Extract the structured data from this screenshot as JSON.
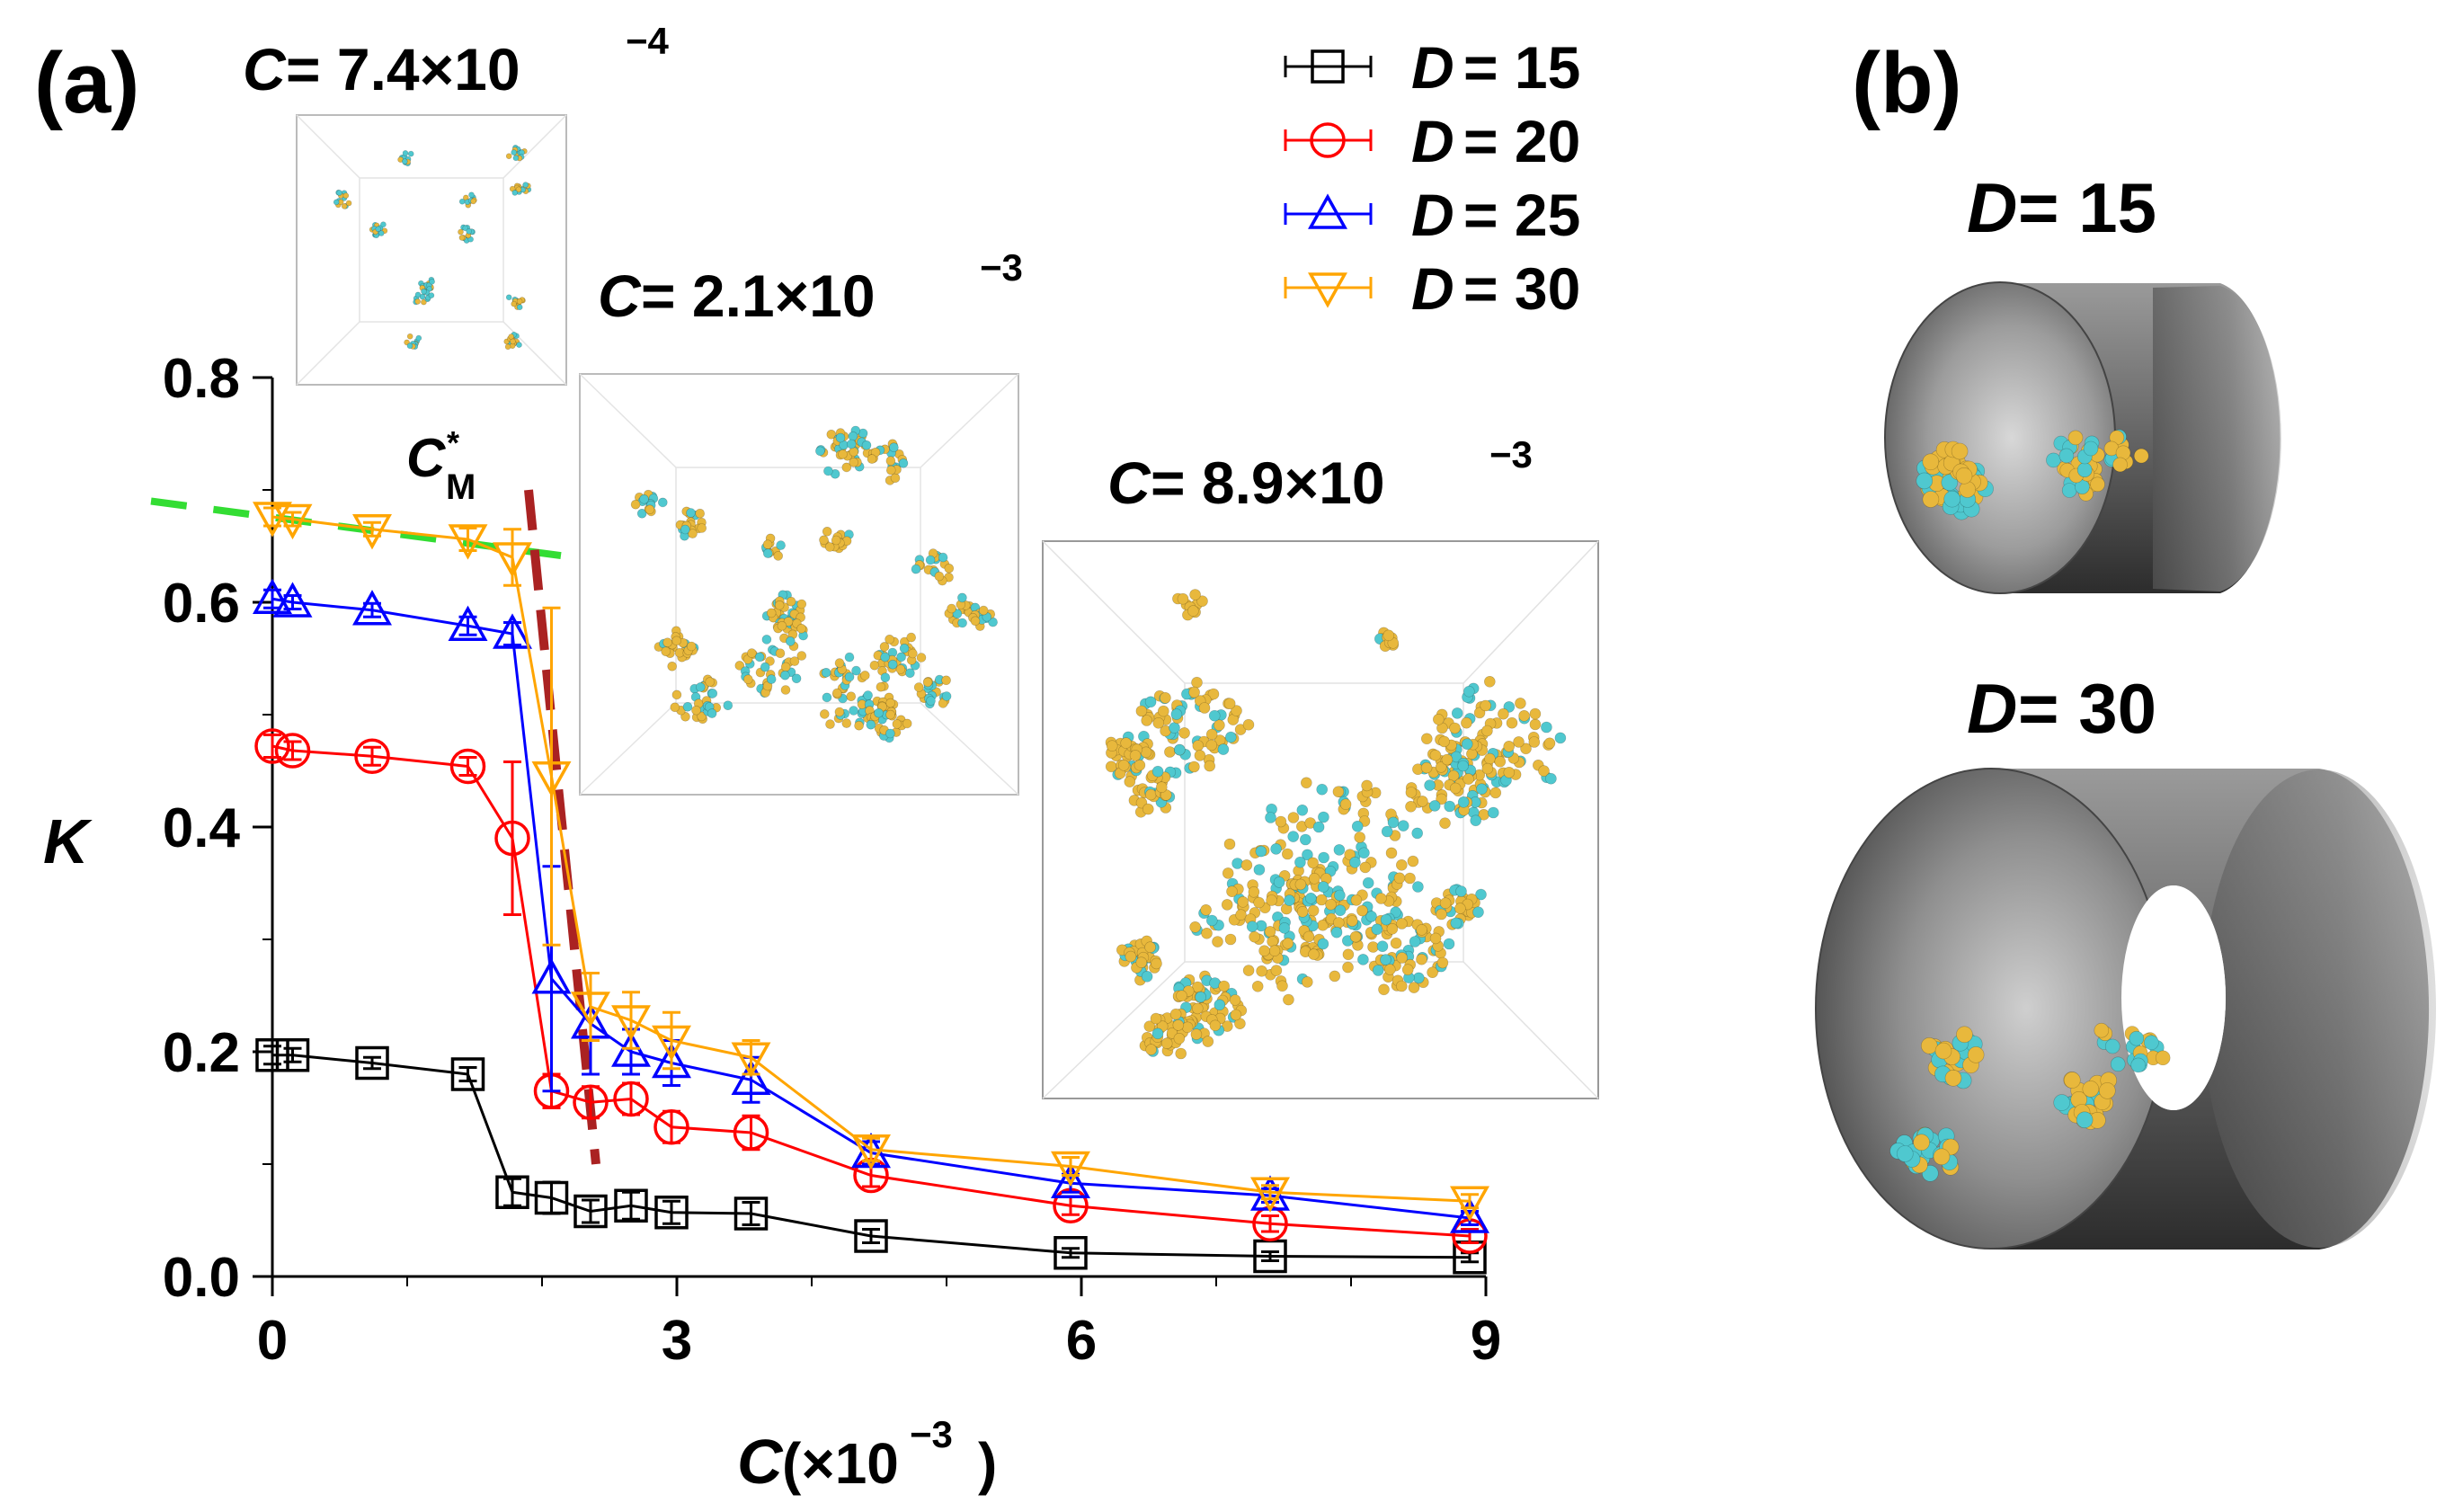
{
  "panel_labels": {
    "a": "(a)",
    "b": "(b)"
  },
  "chart_data": {
    "type": "line",
    "xlabel_var": "C",
    "xlabel_unit": "(×10",
    "xlabel_exp": "−3",
    "xlabel_close": ")",
    "ylabel": "K",
    "xlim": [
      0,
      9
    ],
    "ylim": [
      0,
      0.8
    ],
    "xticks": [
      0,
      3,
      6,
      9
    ],
    "xtick_labels": [
      "0",
      "3",
      "6",
      "9"
    ],
    "yticks": [
      0.0,
      0.2,
      0.4,
      0.6,
      0.8
    ],
    "ytick_labels": [
      "0.0",
      "0.2",
      "0.4",
      "0.6",
      "0.8"
    ],
    "legend_position": "top-right",
    "series": [
      {
        "name": "D = 15",
        "legend_var": "D",
        "legend_val": "= 15",
        "color": "#000000",
        "marker": "square",
        "x": [
          0.0,
          0.15,
          0.74,
          1.45,
          1.78,
          2.07,
          2.36,
          2.66,
          2.96,
          3.55,
          4.44,
          5.92,
          7.4,
          8.88
        ],
        "y": [
          0.197,
          0.197,
          0.19,
          0.18,
          0.075,
          0.07,
          0.058,
          0.063,
          0.057,
          0.056,
          0.036,
          0.021,
          0.018,
          0.017
        ],
        "err": [
          0.008,
          0.006,
          0.005,
          0.006,
          0.012,
          0.014,
          0.01,
          0.012,
          0.01,
          0.01,
          0.006,
          0.004,
          0.004,
          0.004
        ]
      },
      {
        "name": "D = 20",
        "legend_var": "D",
        "legend_val": "= 20",
        "color": "#ff0000",
        "marker": "circle",
        "x": [
          0.0,
          0.15,
          0.74,
          1.45,
          1.78,
          2.07,
          2.36,
          2.66,
          2.96,
          3.55,
          4.44,
          5.92,
          7.4,
          8.88
        ],
        "y": [
          0.472,
          0.468,
          0.463,
          0.454,
          0.39,
          0.165,
          0.155,
          0.158,
          0.133,
          0.128,
          0.09,
          0.063,
          0.047,
          0.036
        ],
        "err": [
          0.01,
          0.008,
          0.008,
          0.008,
          0.068,
          0.015,
          0.014,
          0.014,
          0.014,
          0.015,
          0.01,
          0.008,
          0.007,
          0.006
        ]
      },
      {
        "name": "D = 25",
        "legend_var": "D",
        "legend_val": "= 25",
        "color": "#0000ff",
        "marker": "triangle-up",
        "x": [
          0.0,
          0.15,
          0.74,
          1.45,
          1.78,
          2.07,
          2.36,
          2.66,
          2.96,
          3.55,
          4.44,
          5.92,
          7.4,
          8.88
        ],
        "y": [
          0.603,
          0.6,
          0.593,
          0.579,
          0.572,
          0.265,
          0.225,
          0.2,
          0.19,
          0.175,
          0.11,
          0.083,
          0.072,
          0.052
        ],
        "err": [
          0.008,
          0.006,
          0.006,
          0.008,
          0.01,
          0.1,
          0.045,
          0.02,
          0.02,
          0.02,
          0.01,
          0.008,
          0.006,
          0.006
        ]
      },
      {
        "name": "D = 30",
        "legend_var": "D",
        "legend_val": "= 30",
        "color": "#ffa500",
        "marker": "triangle-down",
        "x": [
          0.0,
          0.15,
          0.74,
          1.45,
          1.78,
          2.07,
          2.36,
          2.66,
          2.96,
          3.55,
          4.44,
          5.92,
          7.4,
          8.88
        ],
        "y": [
          0.676,
          0.674,
          0.665,
          0.656,
          0.64,
          0.445,
          0.24,
          0.228,
          0.21,
          0.195,
          0.113,
          0.098,
          0.075,
          0.067
        ],
        "err": [
          0.008,
          0.006,
          0.006,
          0.01,
          0.025,
          0.15,
          0.03,
          0.025,
          0.025,
          0.015,
          0.01,
          0.008,
          0.006,
          0.006
        ]
      }
    ],
    "guide_lines": {
      "green_dash": {
        "color": "#33dd33",
        "x": [
          -0.9,
          2.55
        ],
        "y": [
          0.69,
          0.635
        ]
      },
      "red_dash": {
        "color": "#aa2222",
        "x": [
          1.9,
          2.4
        ],
        "y": [
          0.7,
          0.1
        ]
      }
    },
    "annotation": {
      "base": "C",
      "sup": "*",
      "sub": "M"
    }
  },
  "insets": [
    {
      "var": "C",
      "text": "= 7.4×10",
      "exp": "−4"
    },
    {
      "var": "C",
      "text": "= 2.1×10",
      "exp": "−3"
    },
    {
      "var": "C",
      "text": "= 8.9×10",
      "exp": "−3"
    }
  ],
  "panel_b": {
    "top_var": "D",
    "top_val": "= 15",
    "bottom_var": "D",
    "bottom_val": "= 30"
  },
  "colors": {
    "cyan": "#4fc8cf",
    "gold": "#e8b83c",
    "tube_dark": "#3a3a3a",
    "tube_light": "#b5b5b5"
  }
}
